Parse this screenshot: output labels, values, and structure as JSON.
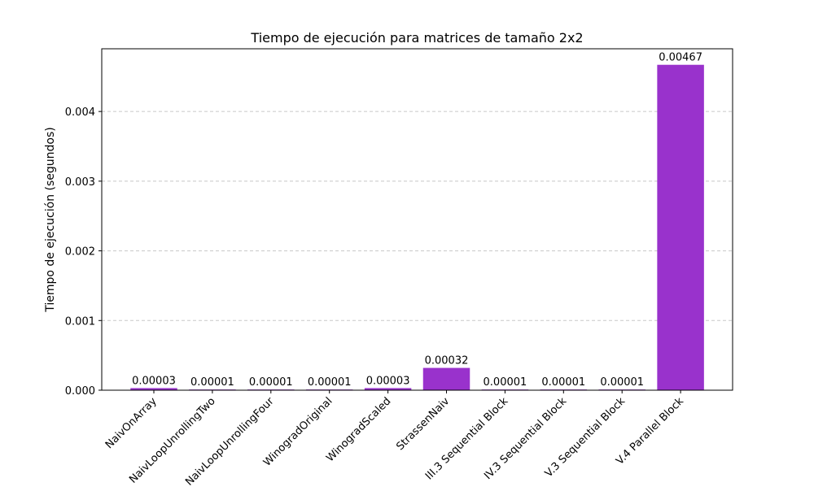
{
  "chart_data": {
    "type": "bar",
    "title": "Tiempo de ejecución para matrices de tamaño 2x2",
    "xlabel": "",
    "ylabel": "Tiempo de ejecución (segundos)",
    "categories": [
      "NaivOnArray",
      "NaivLoopUnrollingTwo",
      "NaivLoopUnrollingFour",
      "WinogradOriginal",
      "WinogradScaled",
      "StrassenNaiv",
      "III.3 Sequential Block",
      "IV.3 Sequential Block",
      "V.3 Sequential Block",
      "V.4 Parallel Block"
    ],
    "values": [
      3e-05,
      1e-05,
      1e-05,
      1e-05,
      3e-05,
      0.00032,
      1e-05,
      1e-05,
      1e-05,
      0.00467
    ],
    "value_labels": [
      "0.00003",
      "0.00001",
      "0.00001",
      "0.00001",
      "0.00003",
      "0.00032",
      "0.00001",
      "0.00001",
      "0.00001",
      "0.00467"
    ],
    "ylim": [
      0,
      0.0049
    ],
    "yticks": [
      0,
      0.001,
      0.002,
      0.003,
      0.004
    ],
    "ytick_labels": [
      "0.000",
      "0.001",
      "0.002",
      "0.003",
      "0.004"
    ],
    "grid": "y-dashed",
    "bar_color": "#9932cc",
    "grid_color": "#c8c8c8"
  }
}
